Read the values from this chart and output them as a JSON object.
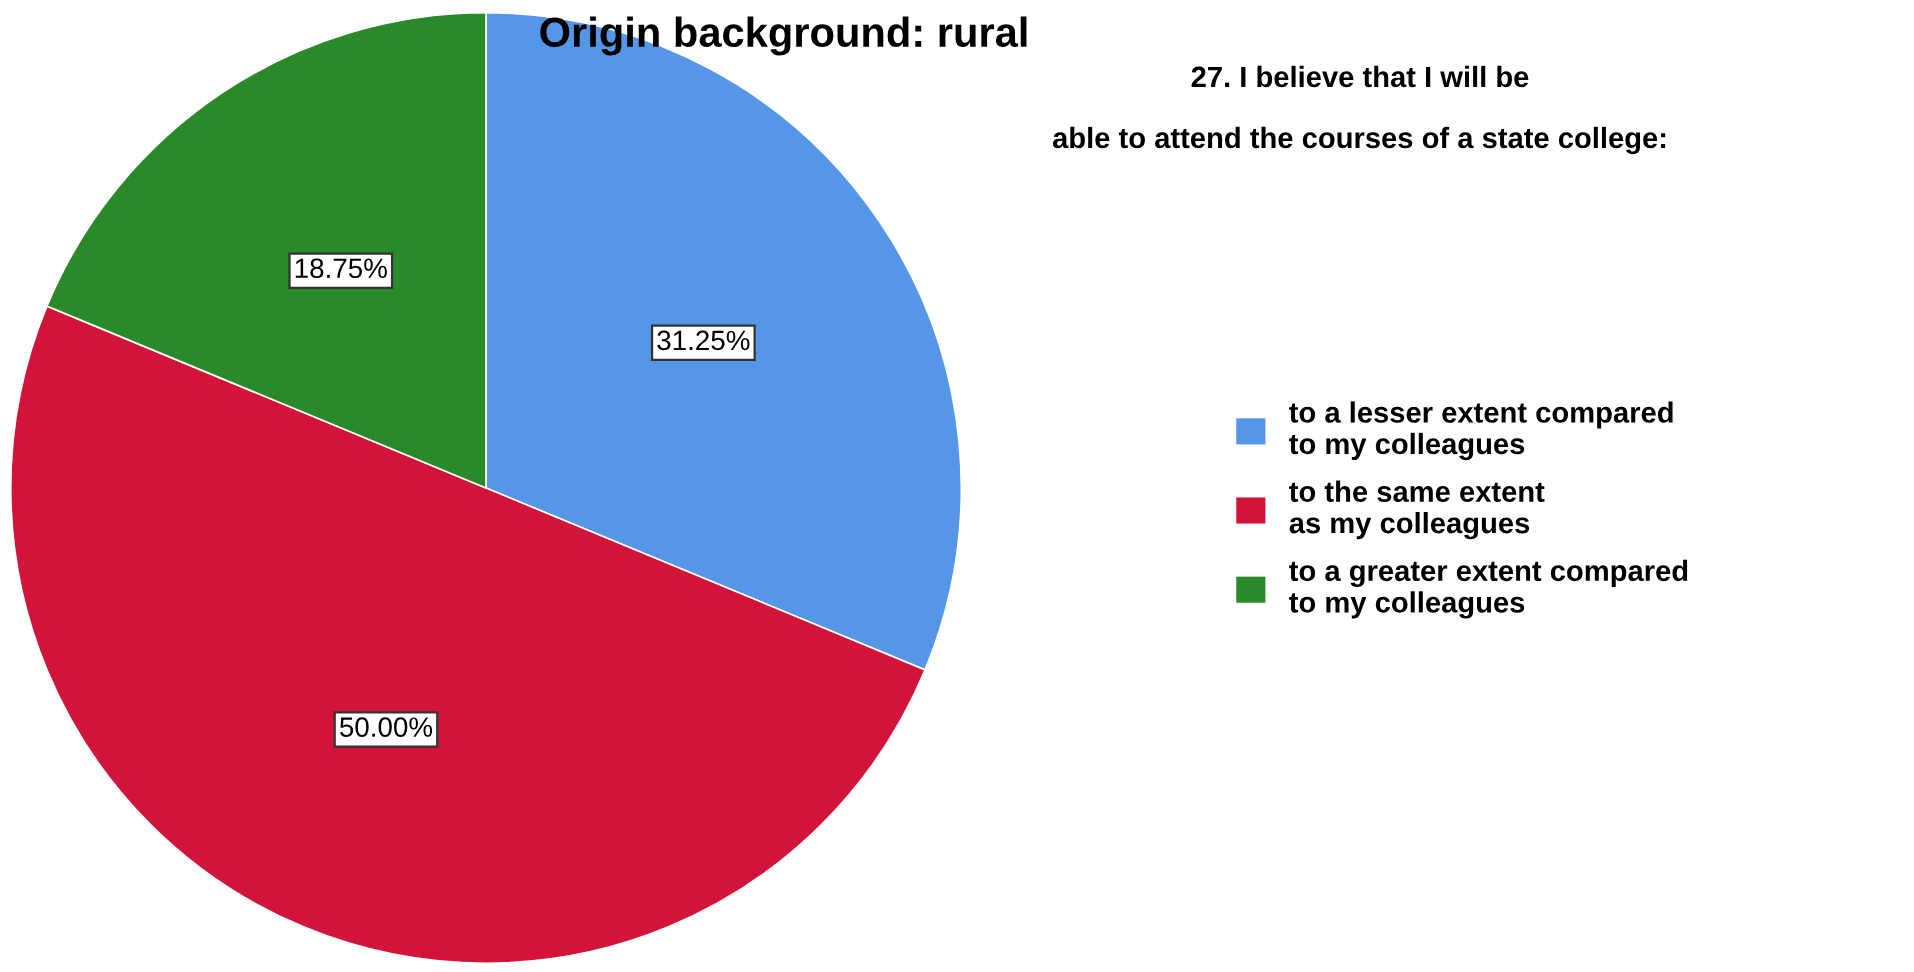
{
  "chart_data": {
    "type": "pie",
    "title": "Origin background: rural",
    "legend_title": "27. I believe that I will be\nable to attend the courses of a state college:",
    "categories": [
      "to a lesser extent compared\nto my colleagues",
      "to the same extent\nas my colleagues",
      "to a greater extent compared\nto my colleagues"
    ],
    "values": [
      31.25,
      50.0,
      18.75
    ],
    "colors": [
      "#5596e6",
      "#d2143a",
      "#2a8a2a"
    ],
    "value_labels": [
      "31.25%",
      "50.00%",
      "18.75%"
    ],
    "legend": "right"
  }
}
